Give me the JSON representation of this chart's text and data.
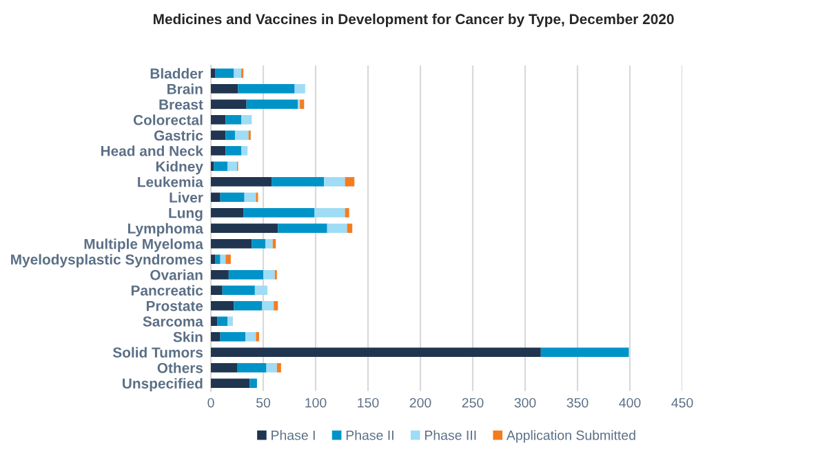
{
  "chart_data": {
    "type": "bar",
    "orientation": "horizontal",
    "stacked": true,
    "title": "Medicines and Vaccines in Development for Cancer by Type, December 2020",
    "categories": [
      "Bladder",
      "Brain",
      "Breast",
      "Colorectal",
      "Gastric",
      "Head and Neck",
      "Kidney",
      "Leukemia",
      "Liver",
      "Lung",
      "Lymphoma",
      "Multiple Myeloma",
      "Myelodysplastic Syndromes",
      "Ovarian",
      "Pancreatic",
      "Prostate",
      "Sarcoma",
      "Skin",
      "Solid Tumors",
      "Others",
      "Unspecified"
    ],
    "series": [
      {
        "name": "Phase I",
        "color": "#1f3550",
        "values": [
          4,
          26,
          34,
          14,
          14,
          14,
          3,
          58,
          9,
          31,
          64,
          39,
          4,
          17,
          11,
          22,
          6,
          9,
          315,
          25,
          37
        ]
      },
      {
        "name": "Phase II",
        "color": "#0093c8",
        "values": [
          18,
          54,
          49,
          15,
          9,
          15,
          13,
          50,
          23,
          68,
          47,
          13,
          5,
          33,
          31,
          27,
          10,
          24,
          84,
          28,
          7
        ]
      },
      {
        "name": "Phase III",
        "color": "#9fdcf5",
        "values": [
          7,
          10,
          2,
          10,
          13,
          6,
          9,
          20,
          11,
          29,
          19,
          7,
          5,
          11,
          12,
          11,
          5,
          10,
          null,
          10,
          null
        ]
      },
      {
        "name": "Application Submitted",
        "color": "#f47c20",
        "values": [
          2,
          null,
          4,
          null,
          2,
          null,
          1,
          9,
          2,
          4,
          5,
          3,
          5,
          2,
          null,
          4,
          null,
          3,
          null,
          4,
          null
        ]
      }
    ],
    "xlim": [
      0,
      450
    ],
    "xticks": [
      0,
      50,
      100,
      150,
      200,
      250,
      300,
      350,
      400,
      450
    ],
    "grid": "x",
    "legend": "bottom"
  }
}
